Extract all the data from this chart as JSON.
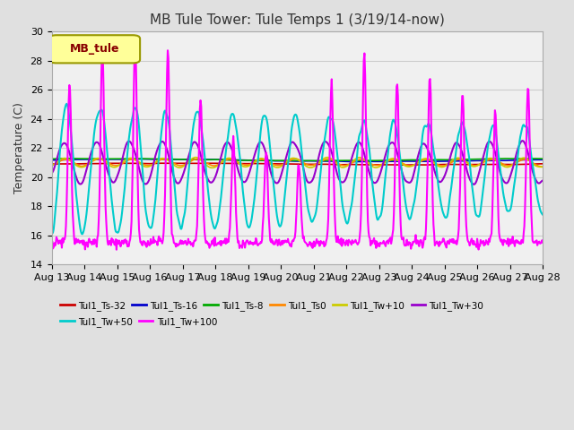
{
  "title": "MB Tule Tower: Tule Temps 1 (3/19/14-now)",
  "ylabel": "Temperature (C)",
  "xlabel": "",
  "ylim": [
    14,
    30
  ],
  "xlim": [
    0,
    15
  ],
  "x_tick_labels": [
    "Aug 13",
    "Aug 14",
    "Aug 15",
    "Aug 16",
    "Aug 17",
    "Aug 18",
    "Aug 19",
    "Aug 20",
    "Aug 21",
    "Aug 22",
    "Aug 23",
    "Aug 24",
    "Aug 25",
    "Aug 26",
    "Aug 27",
    "Aug 28"
  ],
  "legend_label": "MB_tule",
  "series": {
    "Tul1_Ts-32": {
      "color": "#cc0000",
      "lw": 1.2
    },
    "Tul1_Ts-16": {
      "color": "#0000cc",
      "lw": 1.2
    },
    "Tul1_Ts-8": {
      "color": "#00aa00",
      "lw": 1.2
    },
    "Tul1_Ts0": {
      "color": "#ff8800",
      "lw": 1.2
    },
    "Tul1_Tw+10": {
      "color": "#cccc00",
      "lw": 1.2
    },
    "Tul1_Tw+30": {
      "color": "#9900cc",
      "lw": 1.5
    },
    "Tul1_Tw+50": {
      "color": "#00cccc",
      "lw": 1.5
    },
    "Tul1_Tw+100": {
      "color": "#ff00ff",
      "lw": 1.5
    }
  },
  "grid_color": "#cccccc",
  "bg_color": "#e0e0e0",
  "plot_bg": "#f0f0f0",
  "title_fontsize": 11,
  "tick_fontsize": 8,
  "legend_fontsize": 8
}
